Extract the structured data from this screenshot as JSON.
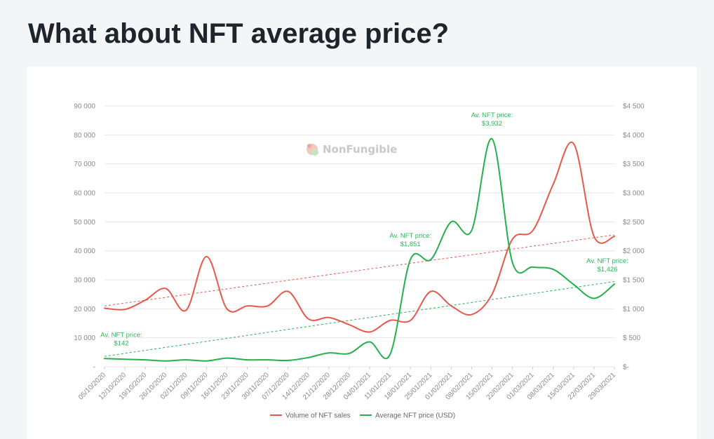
{
  "page": {
    "title": "What about NFT average price?"
  },
  "watermark": {
    "text": "NonFungible"
  },
  "chart_data": {
    "type": "line",
    "title": "",
    "xlabel": "",
    "ylabel": "",
    "colors": {
      "volume": "#e8574b",
      "price": "#22b14c",
      "grid": "#e6e6e6"
    },
    "x": [
      "05/10/2020",
      "12/10/2020",
      "19/10/2020",
      "26/10/2020",
      "02/11/2020",
      "09/11/2020",
      "16/11/2020",
      "23/11/2020",
      "30/11/2020",
      "07/12/2020",
      "14/12/2020",
      "21/12/2020",
      "28/12/2020",
      "04/01/2021",
      "11/01/2021",
      "18/01/2021",
      "25/01/2021",
      "01/02/2021",
      "08/02/2021",
      "15/02/2021",
      "22/02/2021",
      "01/03/2021",
      "08/03/2021",
      "15/03/2021",
      "22/03/2021",
      "29/03/2021"
    ],
    "left_axis": {
      "ylim": [
        0,
        90000
      ],
      "ticks": [
        0,
        10000,
        20000,
        30000,
        40000,
        50000,
        60000,
        70000,
        80000,
        90000
      ],
      "tick_labels": [
        "-",
        "10 000",
        "20 000",
        "30 000",
        "40 000",
        "50 000",
        "60 000",
        "70 000",
        "80 000",
        "90 000"
      ]
    },
    "right_axis": {
      "ylim": [
        0,
        4500
      ],
      "ticks": [
        0,
        500,
        1000,
        1500,
        2000,
        2500,
        3000,
        3500,
        4000,
        4500
      ],
      "tick_labels": [
        "$-",
        "$ 500",
        "$1 000",
        "$1 500",
        "$2 000",
        "$2 500",
        "$3 000",
        "$3 500",
        "$4 000",
        "$4 500"
      ]
    },
    "series": [
      {
        "name": "Volume of NFT sales",
        "axis": "left",
        "color": "#e8574b",
        "values": [
          20200,
          19800,
          23000,
          27000,
          19500,
          38000,
          20000,
          21000,
          21000,
          26000,
          16500,
          17000,
          14500,
          12000,
          16000,
          16000,
          26000,
          21000,
          18000,
          25000,
          44000,
          47000,
          63000,
          77000,
          45000,
          45000
        ]
      },
      {
        "name": "Average NFT price (USD)",
        "axis": "right",
        "color": "#22b14c",
        "values": [
          142,
          130,
          120,
          100,
          120,
          100,
          150,
          120,
          120,
          110,
          160,
          240,
          230,
          430,
          210,
          1851,
          1850,
          2500,
          2350,
          3932,
          1800,
          1720,
          1680,
          1420,
          1180,
          1426
        ]
      }
    ],
    "trendlines": [
      {
        "series": "Volume of NFT sales",
        "axis": "left",
        "start": 21000,
        "end": 45500,
        "color": "#e8574b"
      },
      {
        "series": "Average NFT price (USD)",
        "axis": "right",
        "start": 180,
        "end": 1470,
        "color": "#22b14c"
      }
    ],
    "annotations": [
      {
        "line1": "Av. NFT price:",
        "line2": "$142",
        "x_index": 0,
        "value": 142
      },
      {
        "line1": "Av. NFT price:",
        "line2": "$1,851",
        "x_index": 15,
        "value": 1851
      },
      {
        "line1": "Av. NFT price:",
        "line2": "$3,932",
        "x_index": 19,
        "value": 3932
      },
      {
        "line1": "Av. NFT price:",
        "line2": "$1,426",
        "x_index": 25,
        "value": 1426
      }
    ],
    "grid": true,
    "legend": "bottom"
  }
}
